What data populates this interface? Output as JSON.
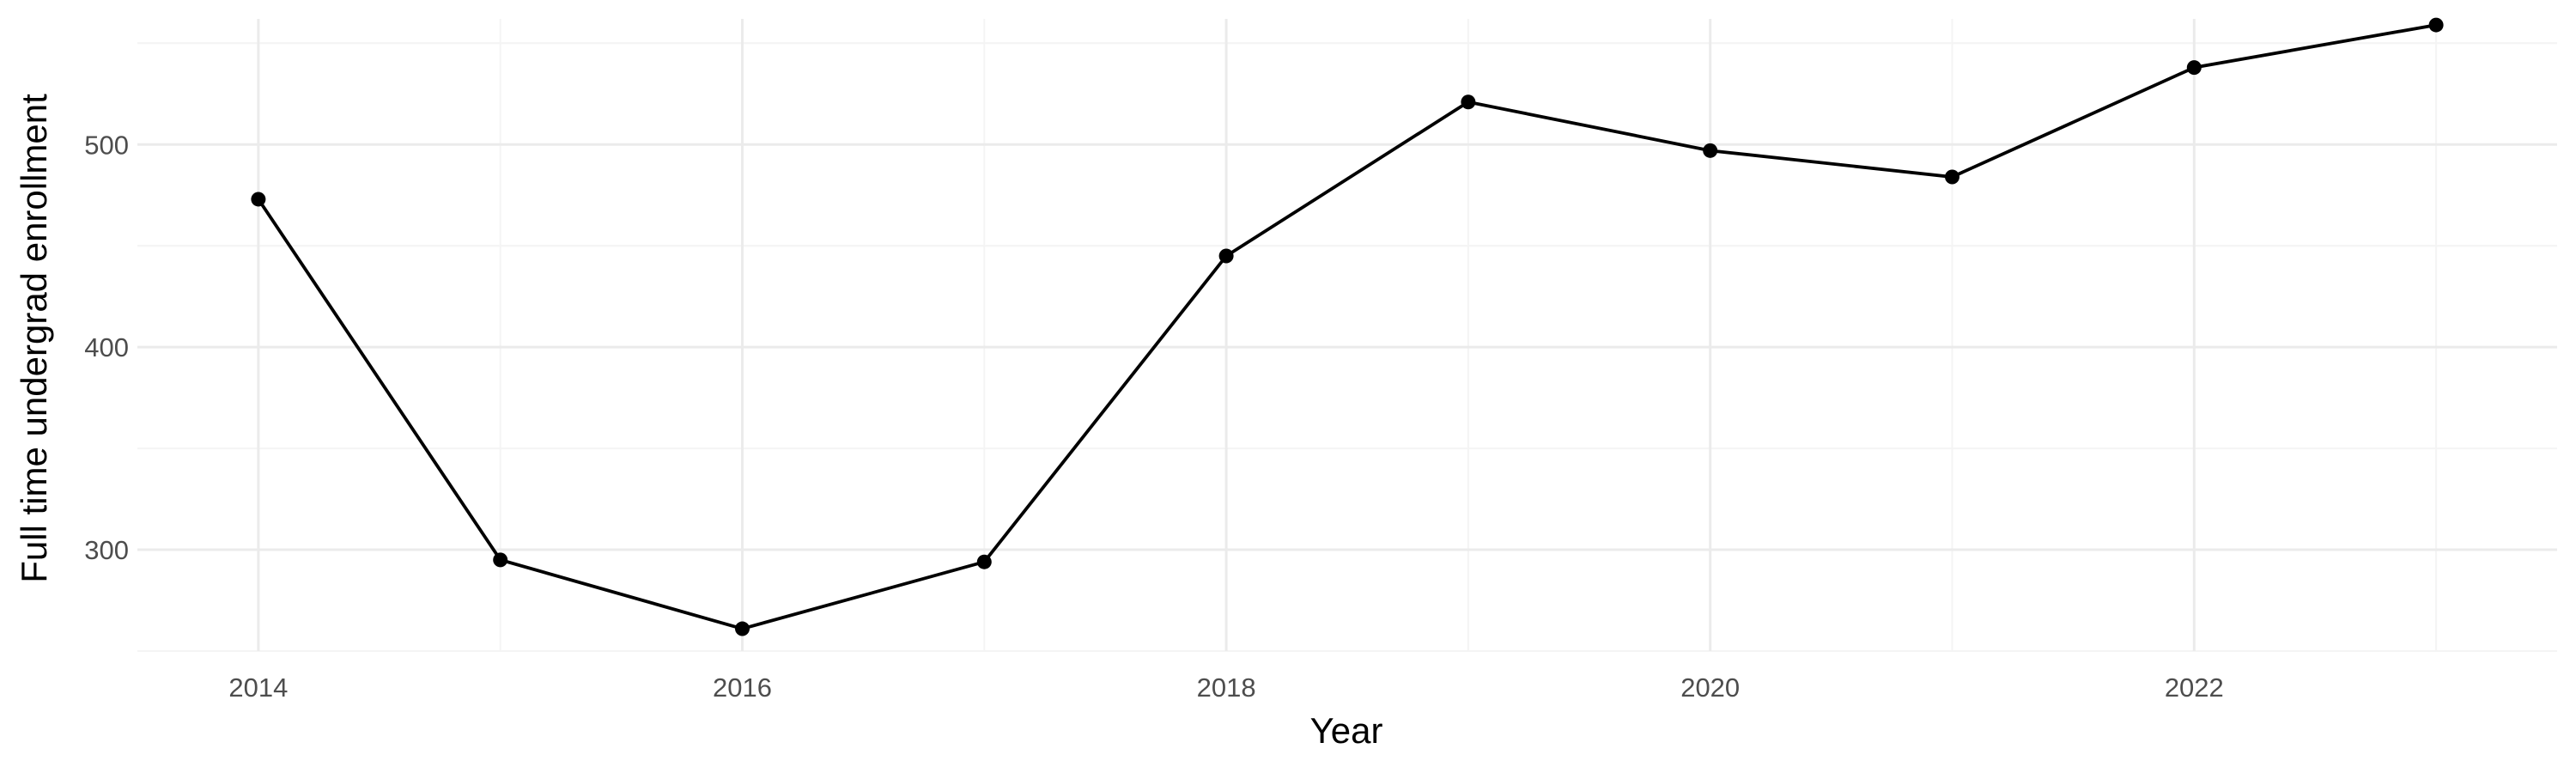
{
  "chart_data": {
    "type": "line",
    "title": "",
    "xlabel": "Year",
    "ylabel": "Full time undergrad enrollment",
    "xlim": [
      2013.5,
      2023.5
    ],
    "ylim": [
      250,
      562
    ],
    "x_ticks": [
      2014,
      2016,
      2018,
      2020,
      2022
    ],
    "x_tick_labels": [
      "2014",
      "2016",
      "2018",
      "2020",
      "2022"
    ],
    "y_ticks": [
      300,
      400,
      500
    ],
    "y_tick_labels": [
      "300",
      "400",
      "500"
    ],
    "grid": true,
    "legend": "none",
    "series": [
      {
        "color": "#000000",
        "x": [
          2014,
          2015,
          2016,
          2017,
          2018,
          2019,
          2020,
          2021,
          2022,
          2023
        ],
        "y": [
          473,
          295,
          261,
          294,
          445,
          521,
          497,
          484,
          538,
          559
        ]
      }
    ]
  }
}
